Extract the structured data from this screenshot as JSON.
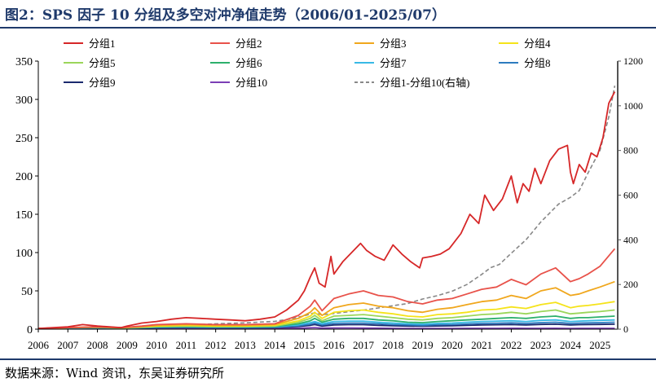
{
  "header": {
    "title": "图2：SPS 因子 10 分组及多空对冲净值走势（2006/01-2025/07）"
  },
  "footer": {
    "source": "数据来源：Wind 资讯，东吴证券研究所"
  },
  "chart_data": {
    "type": "line",
    "title": "图2：SPS 因子 10 分组及多空对冲净值走势（2006/01-2025/07）",
    "xlabel": "",
    "ylabel": "",
    "x_ticks": [
      "2006",
      "2007",
      "2008",
      "2009",
      "2010",
      "2011",
      "2012",
      "2013",
      "2014",
      "2015",
      "2016",
      "2017",
      "2018",
      "2019",
      "2020",
      "2021",
      "2022",
      "2023",
      "2024",
      "2025"
    ],
    "x_range": [
      2006,
      2025.6
    ],
    "ylim_left": [
      0,
      350
    ],
    "yticks_left": [
      0,
      50,
      100,
      150,
      200,
      250,
      300,
      350
    ],
    "ylim_right": [
      0,
      1200
    ],
    "yticks_right": [
      0,
      200,
      400,
      600,
      800,
      1000,
      1200
    ],
    "legend_position": "top",
    "series": [
      {
        "name": "分组1",
        "color": "#d62728",
        "axis": "left",
        "style": "solid",
        "x": [
          2006,
          2007,
          2007.5,
          2008,
          2008.8,
          2009,
          2009.5,
          2010,
          2010.5,
          2011,
          2011.5,
          2012,
          2012.5,
          2013,
          2013.5,
          2014,
          2014.4,
          2014.8,
          2015.0,
          2015.2,
          2015.35,
          2015.5,
          2015.7,
          2015.9,
          2016.0,
          2016.3,
          2016.6,
          2016.9,
          2017.1,
          2017.4,
          2017.7,
          2018.0,
          2018.3,
          2018.6,
          2018.9,
          2019.0,
          2019.3,
          2019.6,
          2019.9,
          2020.0,
          2020.3,
          2020.6,
          2020.9,
          2021.1,
          2021.4,
          2021.7,
          2022.0,
          2022.2,
          2022.4,
          2022.6,
          2022.8,
          2023.0,
          2023.3,
          2023.6,
          2023.9,
          2024.0,
          2024.1,
          2024.3,
          2024.5,
          2024.7,
          2024.9,
          2025.1,
          2025.3,
          2025.5
        ],
        "values": [
          1,
          3,
          6,
          4,
          2,
          4,
          8,
          10,
          13,
          15,
          14,
          13,
          12,
          11,
          13,
          16,
          25,
          38,
          50,
          68,
          80,
          60,
          55,
          95,
          72,
          88,
          100,
          112,
          103,
          95,
          90,
          110,
          98,
          88,
          80,
          93,
          95,
          98,
          105,
          110,
          125,
          150,
          138,
          175,
          155,
          170,
          200,
          165,
          190,
          180,
          210,
          190,
          220,
          235,
          240,
          205,
          190,
          215,
          205,
          230,
          225,
          250,
          295,
          310
        ]
      },
      {
        "name": "分组2",
        "color": "#e8524a",
        "axis": "left",
        "style": "solid",
        "x": [
          2006,
          2007,
          2008,
          2008.8,
          2009.5,
          2010,
          2011,
          2012,
          2013,
          2014,
          2014.8,
          2015.2,
          2015.35,
          2015.6,
          2016,
          2016.5,
          2017,
          2017.5,
          2018,
          2018.5,
          2019,
          2019.5,
          2020,
          2020.5,
          2021,
          2021.5,
          2022,
          2022.5,
          2023,
          2023.5,
          2024,
          2024.3,
          2024.6,
          2025,
          2025.5
        ],
        "values": [
          1,
          2,
          3,
          2,
          4,
          6,
          7,
          6,
          6,
          7,
          18,
          30,
          38,
          24,
          40,
          46,
          50,
          44,
          42,
          36,
          33,
          38,
          40,
          46,
          52,
          55,
          65,
          58,
          72,
          80,
          62,
          66,
          72,
          82,
          105
        ]
      },
      {
        "name": "分组3",
        "color": "#f0a71d",
        "axis": "left",
        "style": "solid",
        "x": [
          2006,
          2007,
          2008,
          2008.8,
          2009.5,
          2010,
          2011,
          2012,
          2013,
          2014,
          2014.8,
          2015.2,
          2015.35,
          2015.6,
          2016,
          2016.5,
          2017,
          2017.5,
          2018,
          2018.5,
          2019,
          2019.5,
          2020,
          2020.5,
          2021,
          2021.5,
          2022,
          2022.5,
          2023,
          2023.5,
          2024,
          2024.3,
          2024.6,
          2025,
          2025.5
        ],
        "values": [
          1,
          2,
          3,
          2,
          3,
          5,
          6,
          5,
          5,
          6,
          14,
          22,
          28,
          18,
          28,
          32,
          34,
          30,
          28,
          24,
          22,
          26,
          28,
          32,
          36,
          38,
          44,
          40,
          50,
          54,
          44,
          46,
          50,
          55,
          62
        ]
      },
      {
        "name": "分组4",
        "color": "#f5e31a",
        "axis": "left",
        "style": "solid",
        "x": [
          2006,
          2007,
          2008,
          2008.8,
          2009.5,
          2010,
          2011,
          2012,
          2013,
          2014,
          2014.8,
          2015.2,
          2015.35,
          2015.6,
          2016,
          2016.5,
          2017,
          2017.5,
          2018,
          2018.5,
          2019,
          2019.5,
          2020,
          2020.5,
          2021,
          2021.5,
          2022,
          2022.5,
          2023,
          2023.5,
          2024,
          2024.3,
          2024.6,
          2025,
          2025.5
        ],
        "values": [
          1,
          2,
          2.5,
          2,
          3,
          4,
          5,
          4,
          4,
          5,
          11,
          17,
          22,
          14,
          22,
          24,
          25,
          22,
          20,
          17,
          16,
          19,
          20,
          22,
          25,
          26,
          29,
          27,
          32,
          35,
          28,
          30,
          31,
          33,
          36
        ]
      },
      {
        "name": "分组5",
        "color": "#9bd65a",
        "axis": "left",
        "style": "solid",
        "x": [
          2006,
          2007,
          2008,
          2008.8,
          2009.5,
          2010,
          2011,
          2012,
          2013,
          2014,
          2014.8,
          2015.2,
          2015.35,
          2015.6,
          2016,
          2016.5,
          2017,
          2017.5,
          2018,
          2018.5,
          2019,
          2019.5,
          2020,
          2020.5,
          2021,
          2021.5,
          2022,
          2022.5,
          2023,
          2023.5,
          2024,
          2024.3,
          2024.6,
          2025,
          2025.5
        ],
        "values": [
          1,
          2,
          2.5,
          1.5,
          2.5,
          3.5,
          4,
          3.5,
          3.5,
          4,
          9,
          14,
          18,
          11,
          17,
          18,
          19,
          17,
          15,
          13,
          12,
          14,
          15,
          17,
          19,
          20,
          22,
          20,
          23,
          25,
          20,
          21,
          22,
          23,
          25
        ]
      },
      {
        "name": "分组6",
        "color": "#2db06c",
        "axis": "left",
        "style": "solid",
        "x": [
          2006,
          2007,
          2008,
          2008.8,
          2009.5,
          2010,
          2011,
          2012,
          2013,
          2014,
          2014.8,
          2015.2,
          2015.35,
          2015.6,
          2016,
          2016.5,
          2017,
          2017.5,
          2018,
          2018.5,
          2019,
          2019.5,
          2020,
          2020.5,
          2021,
          2021.5,
          2022,
          2022.5,
          2023,
          2023.5,
          2024,
          2024.3,
          2024.6,
          2025,
          2025.5
        ],
        "values": [
          1,
          1.8,
          2.2,
          1.4,
          2.2,
          3,
          3.5,
          3,
          3,
          3.5,
          7,
          11,
          14,
          9,
          13,
          14,
          14,
          12,
          11,
          9,
          8.5,
          10,
          11,
          12,
          13,
          14,
          15,
          14,
          16,
          17,
          14,
          15,
          15,
          16,
          17
        ]
      },
      {
        "name": "分组7",
        "color": "#38b9e6",
        "axis": "left",
        "style": "solid",
        "x": [
          2006,
          2007,
          2008,
          2008.8,
          2009.5,
          2010,
          2011,
          2012,
          2013,
          2014,
          2014.8,
          2015.2,
          2015.35,
          2015.6,
          2016,
          2016.5,
          2017,
          2017.5,
          2018,
          2018.5,
          2019,
          2019.5,
          2020,
          2020.5,
          2021,
          2021.5,
          2022,
          2022.5,
          2023,
          2023.5,
          2024,
          2024.3,
          2024.6,
          2025,
          2025.5
        ],
        "values": [
          1,
          1.6,
          2,
          1.3,
          2,
          2.6,
          3,
          2.6,
          2.6,
          3,
          5.5,
          8.5,
          10,
          7,
          10,
          10.5,
          10.5,
          9,
          8,
          7,
          6.5,
          7.5,
          8,
          9,
          10,
          10.5,
          11,
          10,
          11.5,
          12,
          10,
          10.5,
          11,
          11.5,
          12
        ]
      },
      {
        "name": "分组8",
        "color": "#2c7bbf",
        "axis": "left",
        "style": "solid",
        "x": [
          2006,
          2007,
          2008,
          2008.8,
          2009.5,
          2010,
          2011,
          2012,
          2013,
          2014,
          2014.8,
          2015.2,
          2015.35,
          2015.6,
          2016,
          2016.5,
          2017,
          2017.5,
          2018,
          2018.5,
          2019,
          2019.5,
          2020,
          2020.5,
          2021,
          2021.5,
          2022,
          2022.5,
          2023,
          2023.5,
          2024,
          2024.3,
          2024.6,
          2025,
          2025.5
        ],
        "values": [
          1,
          1.4,
          1.8,
          1.2,
          1.8,
          2.2,
          2.5,
          2.2,
          2.2,
          2.5,
          4.5,
          6.5,
          8,
          5.5,
          7.5,
          8,
          8,
          7,
          6,
          5.5,
          5,
          5.8,
          6,
          6.8,
          7.5,
          7.8,
          8.2,
          7.5,
          8.5,
          9,
          7.5,
          8,
          8.2,
          8.5,
          9
        ]
      },
      {
        "name": "分组9",
        "color": "#1a2a6e",
        "axis": "left",
        "style": "solid",
        "x": [
          2006,
          2007,
          2008,
          2008.8,
          2009.5,
          2010,
          2011,
          2012,
          2013,
          2014,
          2014.8,
          2015.2,
          2015.35,
          2015.6,
          2016,
          2016.5,
          2017,
          2017.5,
          2018,
          2018.5,
          2019,
          2019.5,
          2020,
          2020.5,
          2021,
          2021.5,
          2022,
          2022.5,
          2023,
          2023.5,
          2024,
          2024.3,
          2024.6,
          2025,
          2025.5
        ],
        "values": [
          1,
          1.3,
          1.5,
          1,
          1.5,
          1.8,
          2,
          1.8,
          1.8,
          2,
          3.5,
          5,
          6,
          4,
          5.5,
          5.8,
          5.8,
          5,
          4.5,
          4,
          3.8,
          4.2,
          4.5,
          5,
          5.5,
          5.7,
          6,
          5.5,
          6.2,
          6.5,
          5.5,
          5.8,
          6,
          6.2,
          6.5
        ]
      },
      {
        "name": "分组10",
        "color": "#7b3fb5",
        "axis": "left",
        "style": "solid",
        "x": [
          2006,
          2007,
          2008,
          2008.8,
          2009.5,
          2010,
          2011,
          2012,
          2013,
          2014,
          2014.8,
          2015.2,
          2015.35,
          2015.6,
          2016,
          2016.5,
          2017,
          2017.5,
          2018,
          2018.5,
          2019,
          2019.5,
          2020,
          2020.5,
          2021,
          2021.5,
          2022,
          2022.5,
          2023,
          2023.5,
          2024,
          2024.3,
          2024.6,
          2025,
          2025.5
        ],
        "values": [
          1,
          1.1,
          1.2,
          0.8,
          1.1,
          1.2,
          1.1,
          1,
          0.9,
          0.9,
          1.3,
          1.8,
          2,
          1.4,
          1.6,
          1.6,
          1.5,
          1.3,
          1.1,
          1,
          0.9,
          0.95,
          1,
          1.05,
          1.1,
          1.1,
          1.15,
          1.05,
          1.1,
          1.15,
          1,
          1.05,
          1.05,
          1.1,
          1.1
        ]
      },
      {
        "name": "分组1-分组10(右轴)",
        "color": "#888888",
        "axis": "right",
        "style": "dashed",
        "x": [
          2006,
          2007,
          2008,
          2009,
          2010,
          2011,
          2012,
          2013,
          2014,
          2014.5,
          2015,
          2015.3,
          2015.6,
          2016,
          2016.5,
          2017,
          2017.5,
          2018,
          2018.5,
          2019,
          2019.5,
          2020,
          2020.5,
          2021,
          2021.3,
          2021.6,
          2022,
          2022.5,
          2023,
          2023.3,
          2023.6,
          2024,
          2024.3,
          2024.6,
          2025,
          2025.3,
          2025.5
        ],
        "values": [
          1,
          3,
          5,
          8,
          12,
          18,
          24,
          28,
          35,
          45,
          60,
          72,
          65,
          70,
          78,
          85,
          95,
          105,
          115,
          135,
          150,
          170,
          200,
          245,
          275,
          290,
          340,
          400,
          480,
          520,
          560,
          590,
          620,
          700,
          800,
          950,
          1090
        ]
      }
    ]
  }
}
